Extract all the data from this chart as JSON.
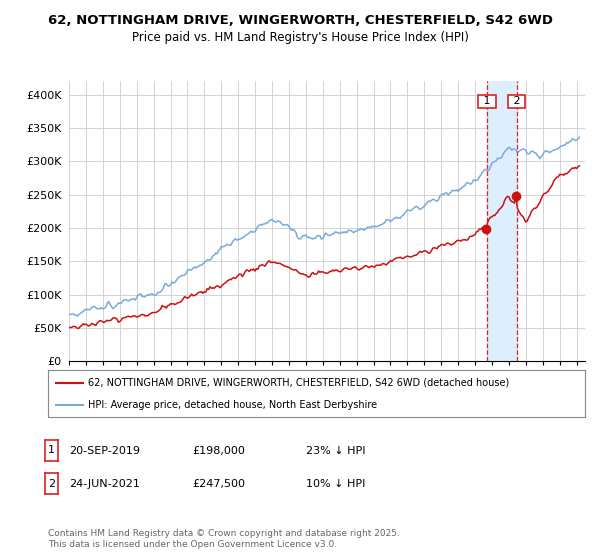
{
  "title_line1": "62, NOTTINGHAM DRIVE, WINGERWORTH, CHESTERFIELD, S42 6WD",
  "title_line2": "Price paid vs. HM Land Registry's House Price Index (HPI)",
  "ylim": [
    0,
    420000
  ],
  "yticks": [
    0,
    50000,
    100000,
    150000,
    200000,
    250000,
    300000,
    350000,
    400000
  ],
  "ytick_labels": [
    "£0",
    "£50K",
    "£100K",
    "£150K",
    "£200K",
    "£250K",
    "£300K",
    "£350K",
    "£400K"
  ],
  "hpi_color": "#7aaadd",
  "price_color": "#cc1111",
  "vline_color": "#dd2222",
  "shade_color": "#ddeeff",
  "background_color": "#ffffff",
  "grid_color": "#cccccc",
  "legend_label_price": "62, NOTTINGHAM DRIVE, WINGERWORTH, CHESTERFIELD, S42 6WD (detached house)",
  "legend_label_hpi": "HPI: Average price, detached house, North East Derbyshire",
  "purchase1_date": "20-SEP-2019",
  "purchase1_price": 198000,
  "purchase1_price_str": "£198,000",
  "purchase1_hpi_diff": "23% ↓ HPI",
  "purchase1_label": "1",
  "purchase2_date": "24-JUN-2021",
  "purchase2_price": 247500,
  "purchase2_price_str": "£247,500",
  "purchase2_hpi_diff": "10% ↓ HPI",
  "purchase2_label": "2",
  "copyright_text": "Contains HM Land Registry data © Crown copyright and database right 2025.\nThis data is licensed under the Open Government Licence v3.0.",
  "x_start_year": 1995,
  "x_end_year": 2025
}
